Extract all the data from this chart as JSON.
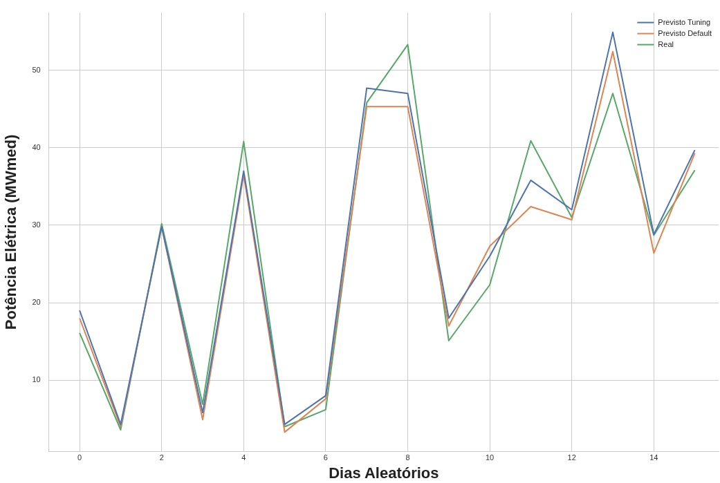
{
  "chart_data": {
    "type": "line",
    "xlabel": "Dias Aleatórios",
    "ylabel": "Potência Elétrica (MWmed)",
    "x": [
      0,
      1,
      2,
      3,
      4,
      5,
      6,
      7,
      8,
      9,
      10,
      11,
      12,
      13,
      14,
      15
    ],
    "xlim": [
      -0.75,
      15.58
    ],
    "xticks": [
      0,
      2,
      4,
      6,
      8,
      10,
      12,
      14
    ],
    "ylim": [
      0.8,
      57.4
    ],
    "yticks": [
      10,
      20,
      30,
      40,
      50
    ],
    "grid": true,
    "legend": "top right",
    "marker": "none",
    "line_style": "solid",
    "series": [
      {
        "name": "Previsto Tuning",
        "color": "#4c72b0",
        "values": [
          19.0,
          4.3,
          29.8,
          5.8,
          37.0,
          4.3,
          8.0,
          47.7,
          47.0,
          18.0,
          26.0,
          35.8,
          32.0,
          54.9,
          28.8,
          39.7
        ]
      },
      {
        "name": "Previsto Default",
        "color": "#dd8452",
        "values": [
          18.0,
          4.0,
          29.8,
          4.9,
          36.5,
          3.3,
          7.6,
          45.3,
          45.3,
          17.0,
          27.3,
          32.4,
          30.7,
          52.4,
          26.4,
          39.3
        ]
      },
      {
        "name": "Real",
        "color": "#55a868",
        "values": [
          16.1,
          3.6,
          30.2,
          6.9,
          40.8,
          4.0,
          6.2,
          45.8,
          53.3,
          15.1,
          22.3,
          40.9,
          31.0,
          47.0,
          28.7,
          37.1
        ]
      }
    ]
  }
}
